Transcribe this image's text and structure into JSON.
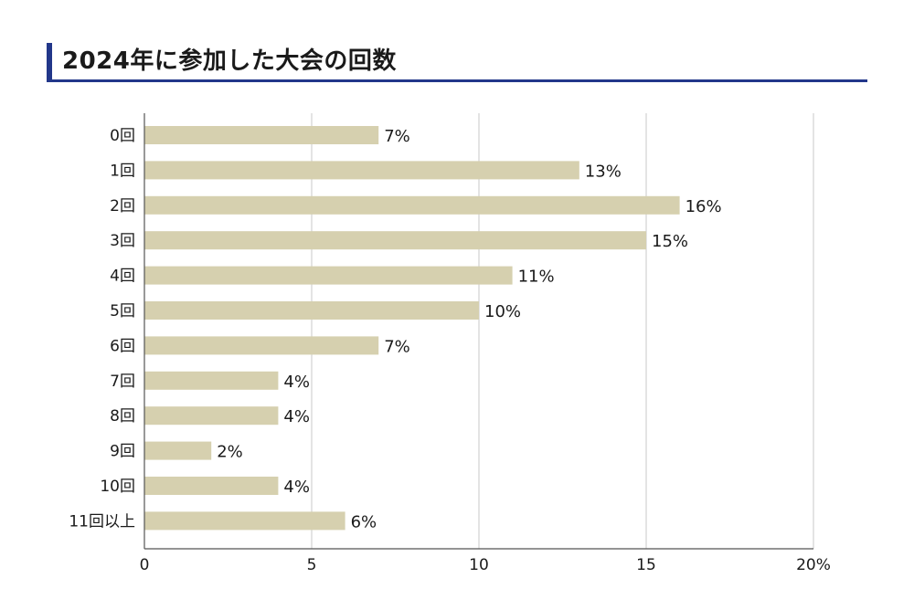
{
  "chart_data": {
    "type": "bar",
    "orientation": "horizontal",
    "title": "2024年に参加した大会の回数",
    "categories": [
      "0回",
      "1回",
      "2回",
      "3回",
      "4回",
      "5回",
      "6回",
      "7回",
      "8回",
      "9回",
      "10回",
      "11回以上"
    ],
    "values": [
      7,
      13,
      16,
      15,
      11,
      10,
      7,
      4,
      4,
      2,
      4,
      6
    ],
    "value_labels": [
      "7%",
      "13%",
      "16%",
      "15%",
      "11%",
      "10%",
      "7%",
      "4%",
      "4%",
      "2%",
      "4%",
      "6%"
    ],
    "xticks": [
      "0",
      "5",
      "10",
      "15",
      "20%"
    ],
    "xlim": [
      0,
      20
    ],
    "grid": true,
    "colors": {
      "bar": "#d6d0af",
      "grid": "#c8c8c8",
      "axis": "#555555",
      "accent": "#22378a"
    }
  }
}
